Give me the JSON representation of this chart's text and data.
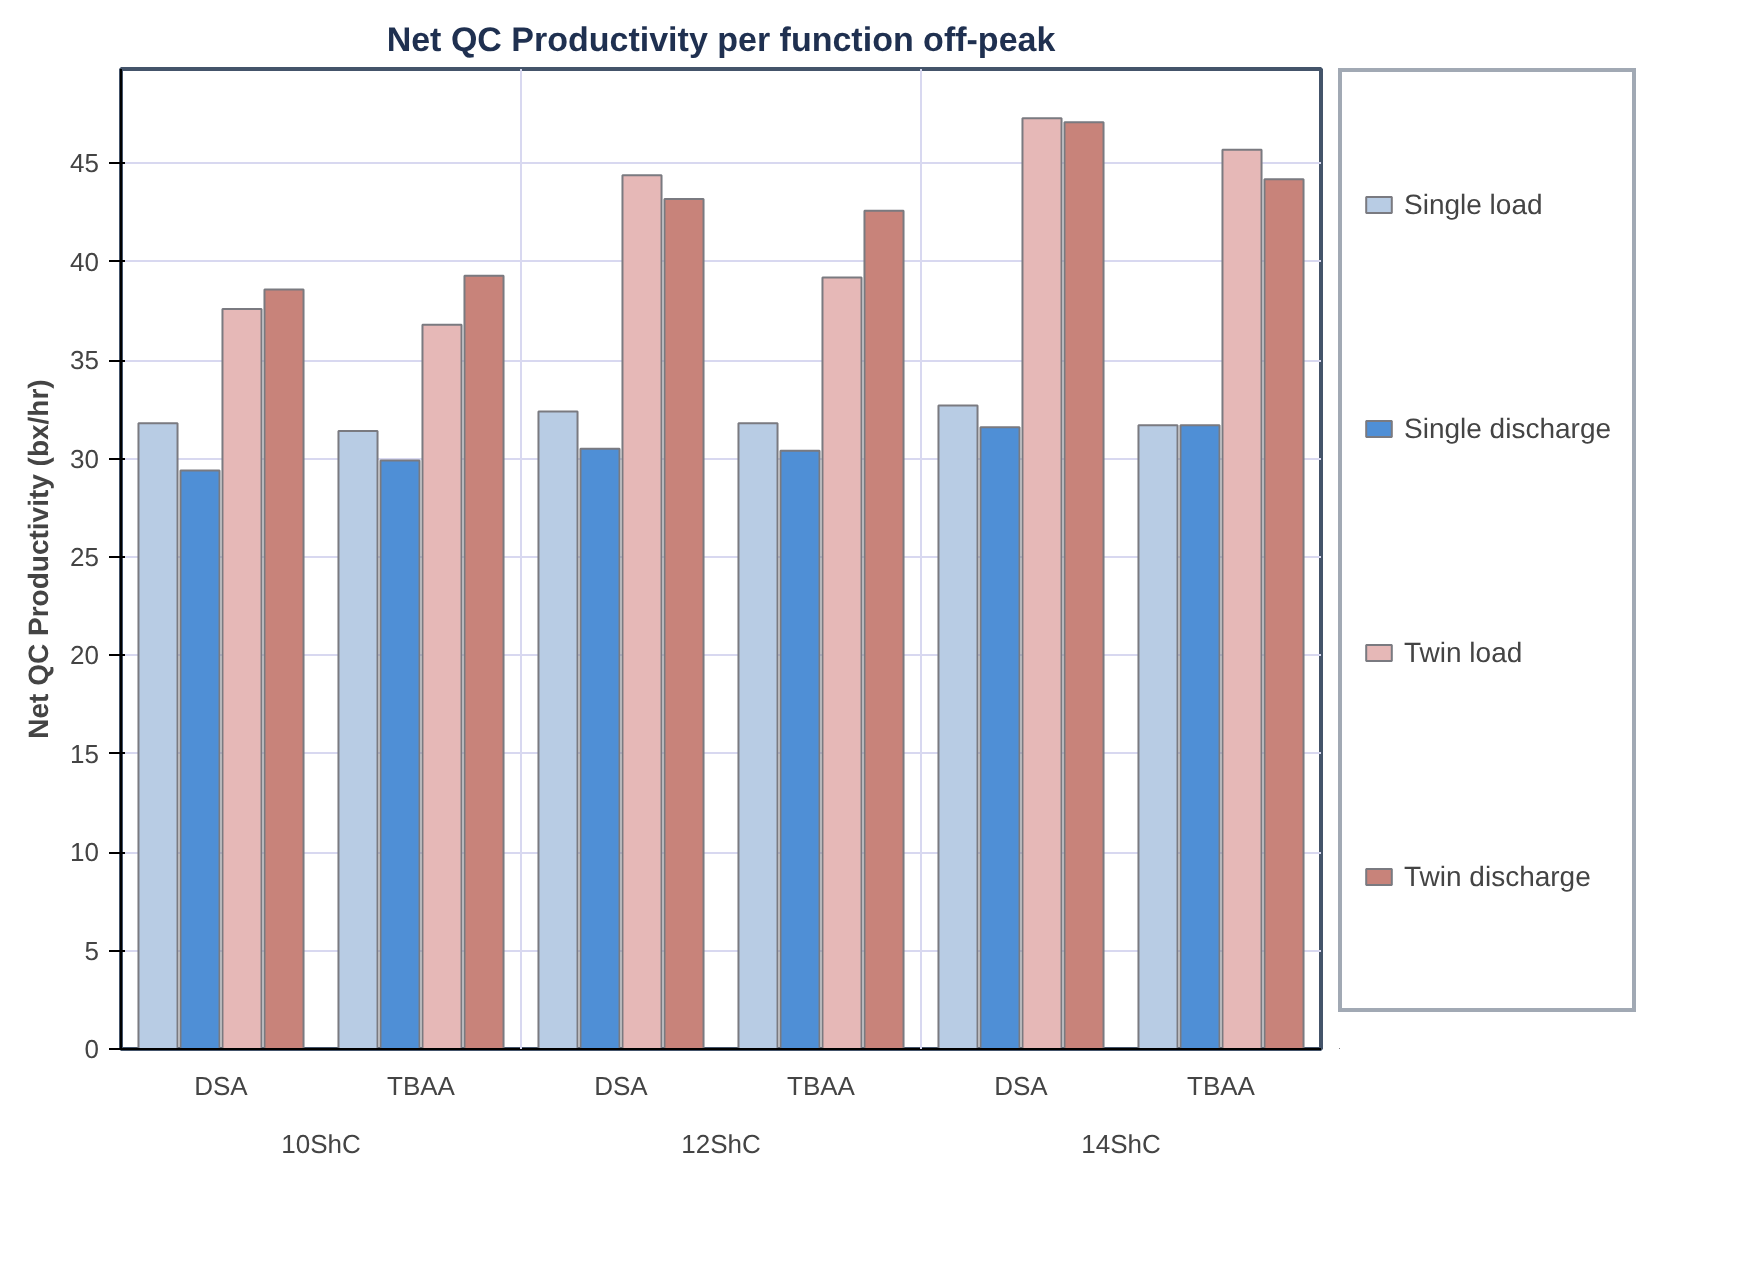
{
  "chart_data": {
    "type": "bar",
    "title": "Net QC Productivity per function off-peak",
    "ylabel": "Net QC Productivity (bx/hr)",
    "categories": [
      "DSA",
      "TBAA",
      "DSA",
      "TBAA",
      "DSA",
      "TBAA"
    ],
    "annotations": [
      "10ShC",
      "12ShC",
      "14ShC"
    ],
    "series": [
      {
        "name": "Single load",
        "color": "#b8cce4",
        "values": [
          31.8,
          31.4,
          32.4,
          31.8,
          32.7,
          31.7
        ]
      },
      {
        "name": "Single discharge",
        "color": "#4f8fd6",
        "values": [
          29.4,
          29.9,
          30.5,
          30.4,
          31.6,
          31.7
        ]
      },
      {
        "name": "Twin load",
        "color": "#e6b8b7",
        "values": [
          37.6,
          36.8,
          44.4,
          39.2,
          47.3,
          45.7
        ]
      },
      {
        "name": "Twin discharge",
        "color": "#c8837a",
        "values": [
          38.6,
          39.3,
          43.2,
          42.6,
          47.1,
          44.2
        ]
      }
    ],
    "ylim": [
      0,
      49.8
    ],
    "yticks": [
      0,
      5,
      10,
      15,
      20,
      25,
      30,
      35,
      40,
      45
    ],
    "grid": true,
    "legend": "right"
  }
}
